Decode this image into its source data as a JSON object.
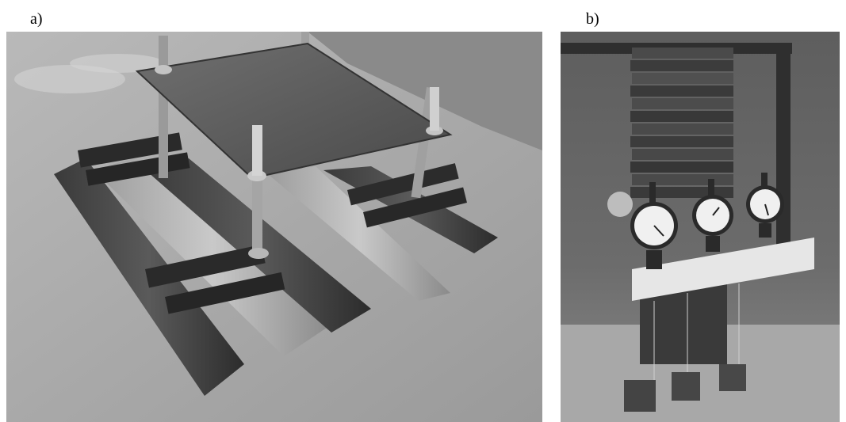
{
  "panels": [
    {
      "label": "a)"
    },
    {
      "label": "b)"
    }
  ],
  "colors": {
    "background": "#ffffff",
    "text": "#000000"
  }
}
